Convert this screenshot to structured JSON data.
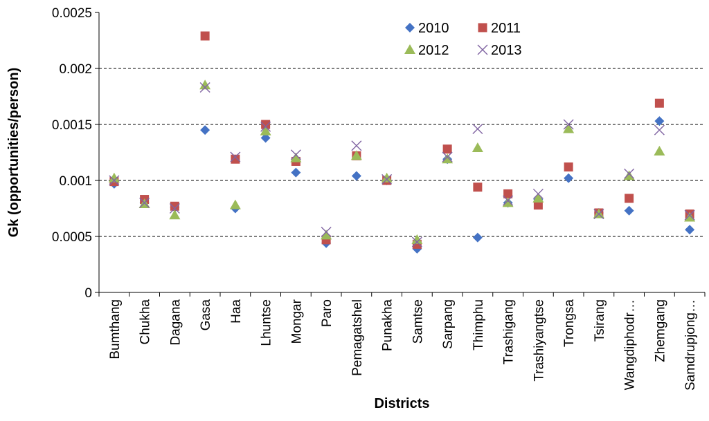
{
  "chart_data": {
    "type": "scatter",
    "title": "",
    "xlabel": "Districts",
    "ylabel": "Gk (opportunities/person)",
    "ylim": [
      0,
      0.0025
    ],
    "yticks": [
      0,
      0.0005,
      0.001,
      0.0015,
      0.002,
      0.0025
    ],
    "ytick_labels": [
      "0",
      "0.0005",
      "0.001",
      "0.0015",
      "0.002",
      "0.0025"
    ],
    "grid": "horizontal dashed",
    "legend_position": "top-center",
    "categories": [
      "Bumthang",
      "Chukha",
      "Dagana",
      "Gasa",
      "Haa",
      "Lhuntse",
      "Mongar",
      "Paro",
      "Pemagatshel",
      "Punakha",
      "Samtse",
      "Sarpang",
      "Thimphu",
      "Trashigang",
      "Trashiyangtse",
      "Trongsa",
      "Tsirang",
      "Wangdiphodr…",
      "Zhemgang",
      "Samdrupjong…"
    ],
    "series": [
      {
        "name": "2010",
        "marker": "diamond",
        "color": "#4472C4",
        "values": [
          0.00097,
          0.0008,
          0.00076,
          0.00145,
          0.00075,
          0.00138,
          0.00107,
          0.00044,
          0.00104,
          0.001,
          0.00039,
          0.00119,
          0.00049,
          0.0008,
          0.00083,
          0.00102,
          0.00071,
          0.00073,
          0.00153,
          0.00056
        ]
      },
      {
        "name": "2011",
        "marker": "square",
        "color": "#C0504D",
        "values": [
          0.00099,
          0.00083,
          0.00077,
          0.00229,
          0.00119,
          0.0015,
          0.00117,
          0.00047,
          0.00122,
          0.001,
          0.00043,
          0.00128,
          0.00094,
          0.00088,
          0.00078,
          0.00112,
          0.00071,
          0.00084,
          0.00169,
          0.0007
        ]
      },
      {
        "name": "2012",
        "marker": "triangle",
        "color": "#9BBB59",
        "values": [
          0.00102,
          0.00079,
          0.00069,
          0.00185,
          0.00078,
          0.00144,
          0.0012,
          0.00051,
          0.00122,
          0.00102,
          0.00047,
          0.00119,
          0.00129,
          0.0008,
          0.00084,
          0.00146,
          0.0007,
          0.00104,
          0.00126,
          0.00067
        ]
      },
      {
        "name": "2013",
        "marker": "x",
        "color": "#8064A2",
        "values": [
          0.001,
          0.0008,
          0.00075,
          0.00183,
          0.00121,
          0.00148,
          0.00123,
          0.00054,
          0.00131,
          0.00101,
          0.00045,
          0.00121,
          0.00146,
          0.00082,
          0.00088,
          0.0015,
          0.0007,
          0.00106,
          0.00145,
          0.00069
        ]
      }
    ]
  }
}
